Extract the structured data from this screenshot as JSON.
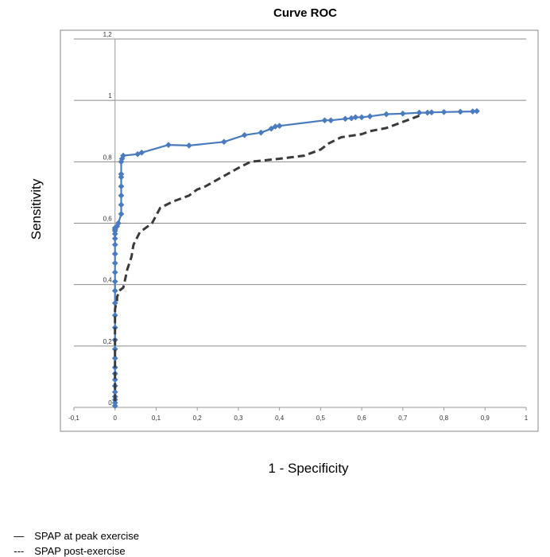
{
  "chart_data": {
    "type": "line",
    "title": "Curve ROC",
    "xlabel": "1 - Specificity",
    "ylabel": "Sensitivity",
    "xlim": [
      -0.1,
      1
    ],
    "ylim": [
      0,
      1.2
    ],
    "x_ticks": [
      -0.1,
      0,
      0.1,
      0.2,
      0.3,
      0.4,
      0.5,
      0.6,
      0.7,
      0.8,
      0.9,
      1
    ],
    "x_tick_labels": [
      "-0,1",
      "0",
      "0,1",
      "0,2",
      "0,3",
      "0,4",
      "0,5",
      "0,6",
      "0,7",
      "0,8",
      "0,9",
      "1"
    ],
    "y_ticks": [
      0,
      0.2,
      0.4,
      0.6,
      0.8,
      1,
      1.2
    ],
    "y_tick_labels": [
      "0",
      "0,2",
      "0,4",
      "0,6",
      "0,8",
      "1",
      "1,2"
    ],
    "grid": "horizontal",
    "series": [
      {
        "name": "SPAP at peak exercise",
        "style": "solid-diamond",
        "color": "#4a7bbf",
        "x": [
          0,
          0,
          0,
          0,
          0,
          0,
          0,
          0,
          0,
          0,
          0,
          0,
          0,
          0,
          0,
          0,
          0,
          0,
          0,
          0,
          0,
          0,
          0,
          0,
          0,
          0,
          0.005,
          0.008,
          0.015,
          0.015,
          0.015,
          0.015,
          0.015,
          0.015,
          0.015,
          0.017,
          0.02,
          0.055,
          0.065,
          0.13,
          0.18,
          0.265,
          0.315,
          0.355,
          0.38,
          0.39,
          0.4,
          0.51,
          0.525,
          0.56,
          0.575,
          0.585,
          0.6,
          0.62,
          0.66,
          0.7,
          0.74,
          0.76,
          0.77,
          0.8,
          0.84,
          0.87,
          0.88
        ],
        "y": [
          0.005,
          0.015,
          0.025,
          0.035,
          0.05,
          0.07,
          0.09,
          0.11,
          0.13,
          0.16,
          0.19,
          0.22,
          0.26,
          0.3,
          0.34,
          0.38,
          0.41,
          0.44,
          0.47,
          0.5,
          0.53,
          0.55,
          0.565,
          0.575,
          0.58,
          0.585,
          0.59,
          0.6,
          0.63,
          0.66,
          0.69,
          0.72,
          0.75,
          0.76,
          0.8,
          0.81,
          0.82,
          0.825,
          0.83,
          0.855,
          0.853,
          0.865,
          0.887,
          0.895,
          0.908,
          0.915,
          0.917,
          0.935,
          0.935,
          0.94,
          0.942,
          0.945,
          0.945,
          0.948,
          0.955,
          0.957,
          0.96,
          0.96,
          0.961,
          0.962,
          0.963,
          0.964,
          0.965
        ]
      },
      {
        "name": "SPAP post-exercise",
        "style": "dashed",
        "color": "#3a3a3a",
        "x": [
          0,
          0,
          0,
          0,
          0,
          0,
          0,
          0,
          0,
          0.003,
          0.005,
          0.005,
          0.008,
          0.01,
          0.02,
          0.025,
          0.03,
          0.04,
          0.045,
          0.06,
          0.07,
          0.09,
          0.11,
          0.14,
          0.18,
          0.2,
          0.22,
          0.26,
          0.3,
          0.33,
          0.4,
          0.46,
          0.5,
          0.52,
          0.55,
          0.6,
          0.62,
          0.66,
          0.7,
          0.74
        ],
        "y": [
          0.02,
          0.05,
          0.09,
          0.13,
          0.18,
          0.23,
          0.27,
          0.3,
          0.32,
          0.34,
          0.35,
          0.36,
          0.37,
          0.38,
          0.39,
          0.42,
          0.45,
          0.49,
          0.53,
          0.57,
          0.58,
          0.6,
          0.65,
          0.67,
          0.69,
          0.71,
          0.72,
          0.75,
          0.78,
          0.8,
          0.81,
          0.82,
          0.84,
          0.86,
          0.88,
          0.89,
          0.9,
          0.91,
          0.93,
          0.95
        ]
      }
    ]
  },
  "legend": {
    "items": [
      {
        "symbol": "—",
        "label": "SPAP at peak exercise"
      },
      {
        "symbol": "---",
        "label": "SPAP post-exercise"
      }
    ]
  }
}
